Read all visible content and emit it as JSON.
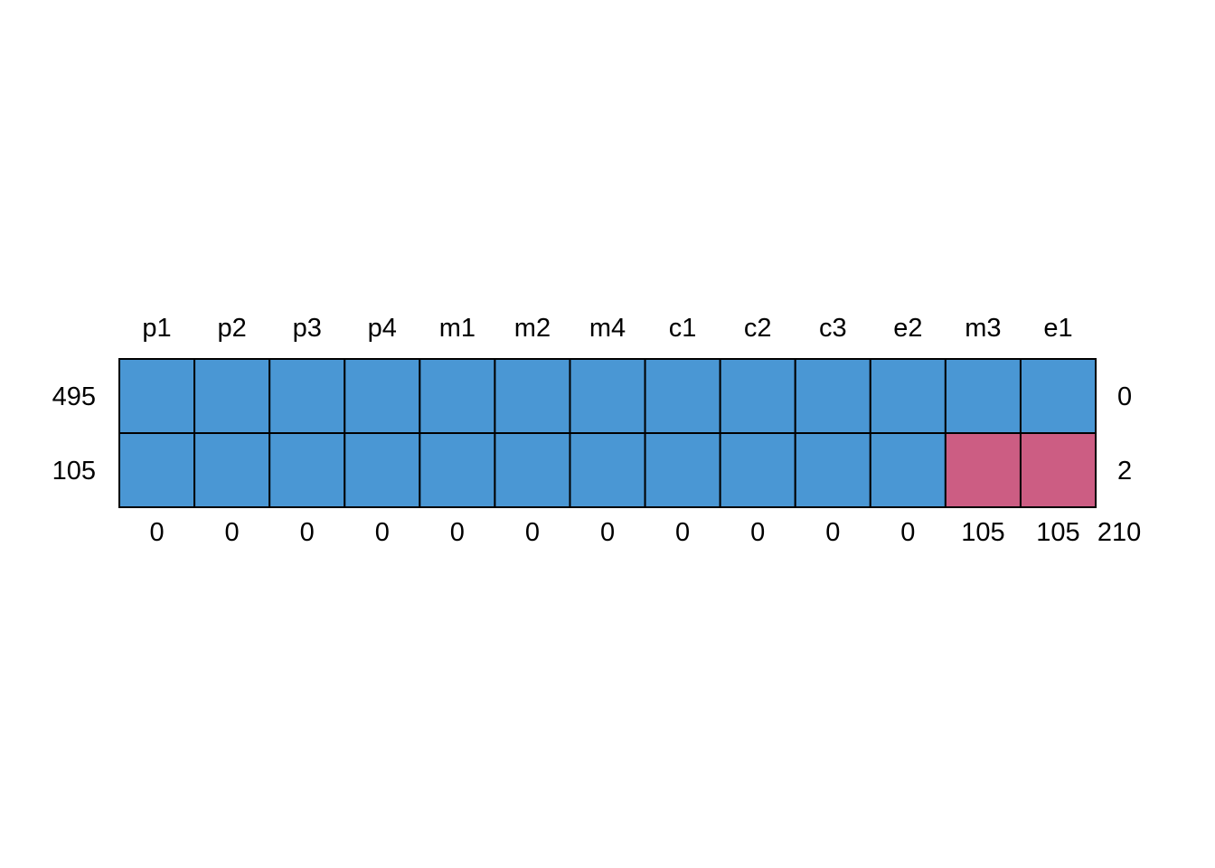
{
  "chart_data": {
    "type": "heatmap",
    "title": "",
    "columns": [
      "p1",
      "p2",
      "p3",
      "p4",
      "m1",
      "m2",
      "m4",
      "c1",
      "c2",
      "c3",
      "e2",
      "m3",
      "e1"
    ],
    "rows": [
      {
        "left_label": "495",
        "right_label": "0",
        "cells": [
          0,
          0,
          0,
          0,
          0,
          0,
          0,
          0,
          0,
          0,
          0,
          0,
          0
        ]
      },
      {
        "left_label": "105",
        "right_label": "2",
        "cells": [
          0,
          0,
          0,
          0,
          0,
          0,
          0,
          0,
          0,
          0,
          0,
          1,
          1
        ]
      }
    ],
    "column_totals": [
      "0",
      "0",
      "0",
      "0",
      "0",
      "0",
      "0",
      "0",
      "0",
      "0",
      "0",
      "105",
      "105"
    ],
    "grand_total": "210",
    "colors": {
      "present": "#4a97d4",
      "missing": "#cc5d83",
      "border": "#000000"
    }
  }
}
